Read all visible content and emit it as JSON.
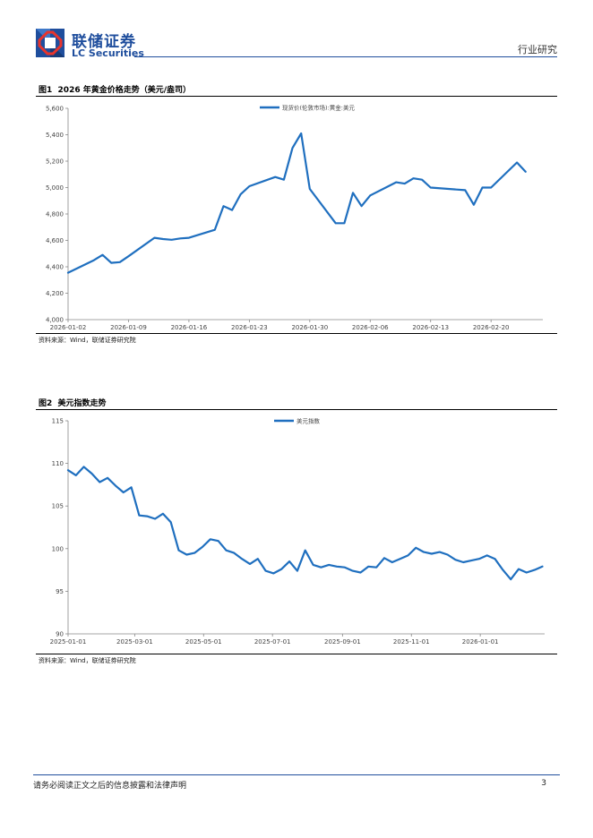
{
  "header": {
    "brand_cn": "联储证券",
    "brand_en": "LC Securities",
    "doc_type": "行业研究",
    "brand_color": "#1f4e9d",
    "accent_color": "#e8342c"
  },
  "figures": [
    {
      "label": "图1",
      "title": "2026 年黄金价格走势（美元/盎司）",
      "source": "资料来源：Wind，联储证券研究院"
    },
    {
      "label": "图2",
      "title": "美元指数走势",
      "source": "资料来源：Wind，联储证券研究院"
    }
  ],
  "footer": {
    "disclaimer": "请务必阅读正文之后的信息披露和法律声明",
    "page_number": "3"
  },
  "chart_data": [
    {
      "type": "line",
      "title": "2026 年黄金价格走势（美元/盎司）",
      "legend": "现货价(伦敦市场):黄金:美元",
      "legend_position": "top",
      "color": "#1f6fbf",
      "ylim": [
        4000,
        5600
      ],
      "yticks": [
        "4,000",
        "4,200",
        "4,400",
        "4,600",
        "4,800",
        "5,000",
        "5,200",
        "5,400",
        "5,600"
      ],
      "xticks": [
        "2026-01-02",
        "2026-01-09",
        "2026-01-16",
        "2026-01-23",
        "2026-01-30",
        "2026-02-06",
        "2026-02-13",
        "2026-02-20"
      ],
      "x": [
        "2026-01-02",
        "2026-01-05",
        "2026-01-06",
        "2026-01-07",
        "2026-01-08",
        "2026-01-09",
        "2026-01-12",
        "2026-01-13",
        "2026-01-14",
        "2026-01-15",
        "2026-01-16",
        "2026-01-19",
        "2026-01-20",
        "2026-01-21",
        "2026-01-22",
        "2026-01-23",
        "2026-01-26",
        "2026-01-27",
        "2026-01-28",
        "2026-01-29",
        "2026-01-30",
        "2026-02-02",
        "2026-02-03",
        "2026-02-04",
        "2026-02-05",
        "2026-02-06",
        "2026-02-09",
        "2026-02-10",
        "2026-02-11",
        "2026-02-12",
        "2026-02-13",
        "2026-02-16",
        "2026-02-17",
        "2026-02-18",
        "2026-02-19",
        "2026-02-20",
        "2026-02-23",
        "2026-02-24"
      ],
      "y": [
        4355,
        4450,
        4490,
        4430,
        4435,
        4480,
        4620,
        4610,
        4605,
        4615,
        4620,
        4680,
        4860,
        4830,
        4950,
        5010,
        5080,
        5060,
        5300,
        5410,
        4990,
        4730,
        4730,
        4960,
        4860,
        4940,
        5040,
        5030,
        5070,
        5060,
        5000,
        4985,
        4980,
        4870,
        5000,
        5000,
        5190,
        5120
      ]
    },
    {
      "type": "line",
      "title": "美元指数走势",
      "legend": "美元指数",
      "legend_position": "top",
      "color": "#1f6fbf",
      "ylim": [
        90,
        115
      ],
      "yticks": [
        "90",
        "95",
        "100",
        "105",
        "110",
        "115"
      ],
      "xticks": [
        "2025-01-01",
        "2025-03-01",
        "2025-05-01",
        "2025-07-01",
        "2025-09-01",
        "2025-11-01",
        "2026-01-01"
      ],
      "x": [
        "2025-01-01",
        "2025-01-08",
        "2025-01-15",
        "2025-01-22",
        "2025-01-29",
        "2025-02-05",
        "2025-02-12",
        "2025-02-19",
        "2025-02-26",
        "2025-03-05",
        "2025-03-12",
        "2025-03-19",
        "2025-03-26",
        "2025-04-02",
        "2025-04-09",
        "2025-04-16",
        "2025-04-23",
        "2025-04-30",
        "2025-05-07",
        "2025-05-14",
        "2025-05-21",
        "2025-05-28",
        "2025-06-04",
        "2025-06-11",
        "2025-06-18",
        "2025-06-25",
        "2025-07-02",
        "2025-07-09",
        "2025-07-16",
        "2025-07-23",
        "2025-07-30",
        "2025-08-06",
        "2025-08-13",
        "2025-08-20",
        "2025-08-27",
        "2025-09-03",
        "2025-09-10",
        "2025-09-17",
        "2025-09-24",
        "2025-10-01",
        "2025-10-08",
        "2025-10-15",
        "2025-10-22",
        "2025-10-29",
        "2025-11-05",
        "2025-11-12",
        "2025-11-19",
        "2025-11-26",
        "2025-12-03",
        "2025-12-10",
        "2025-12-17",
        "2025-12-24",
        "2025-12-31",
        "2026-01-07",
        "2026-01-14",
        "2026-01-21",
        "2026-01-28",
        "2026-02-04",
        "2026-02-11",
        "2026-02-18",
        "2026-02-25"
      ],
      "y": [
        109.2,
        108.6,
        109.6,
        108.8,
        107.8,
        108.3,
        107.4,
        106.6,
        107.2,
        103.9,
        103.8,
        103.5,
        104.1,
        103.1,
        99.8,
        99.3,
        99.5,
        100.2,
        101.1,
        100.9,
        99.8,
        99.5,
        98.8,
        98.2,
        98.8,
        97.4,
        97.1,
        97.6,
        98.5,
        97.4,
        99.8,
        98.1,
        97.8,
        98.1,
        97.9,
        97.8,
        97.4,
        97.2,
        97.9,
        97.8,
        98.9,
        98.4,
        98.8,
        99.2,
        100.1,
        99.6,
        99.4,
        99.6,
        99.3,
        98.7,
        98.4,
        98.6,
        98.8,
        99.2,
        98.8,
        97.5,
        96.4,
        97.6,
        97.2,
        97.5,
        97.9
      ]
    }
  ]
}
